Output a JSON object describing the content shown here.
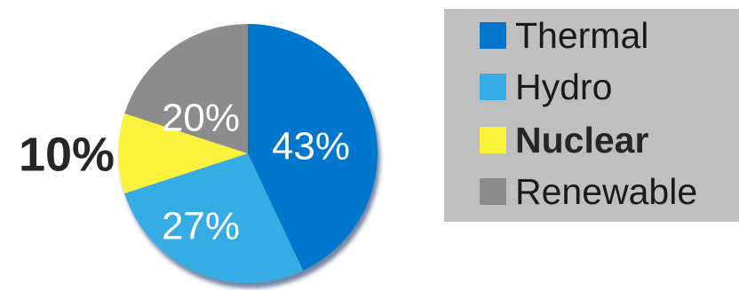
{
  "chart_data": {
    "type": "pie",
    "title": "",
    "categories": [
      "Thermal",
      "Hydro",
      "Nuclear",
      "Renewable"
    ],
    "values": [
      43,
      27,
      10,
      20
    ],
    "data_labels": [
      "43%",
      "27%",
      "10%",
      "20%"
    ],
    "colors": [
      "#0676cc",
      "#35ace3",
      "#fbf23c",
      "#8c8c8c"
    ],
    "emphasized": [
      "Nuclear"
    ],
    "legend_placement": "right"
  }
}
